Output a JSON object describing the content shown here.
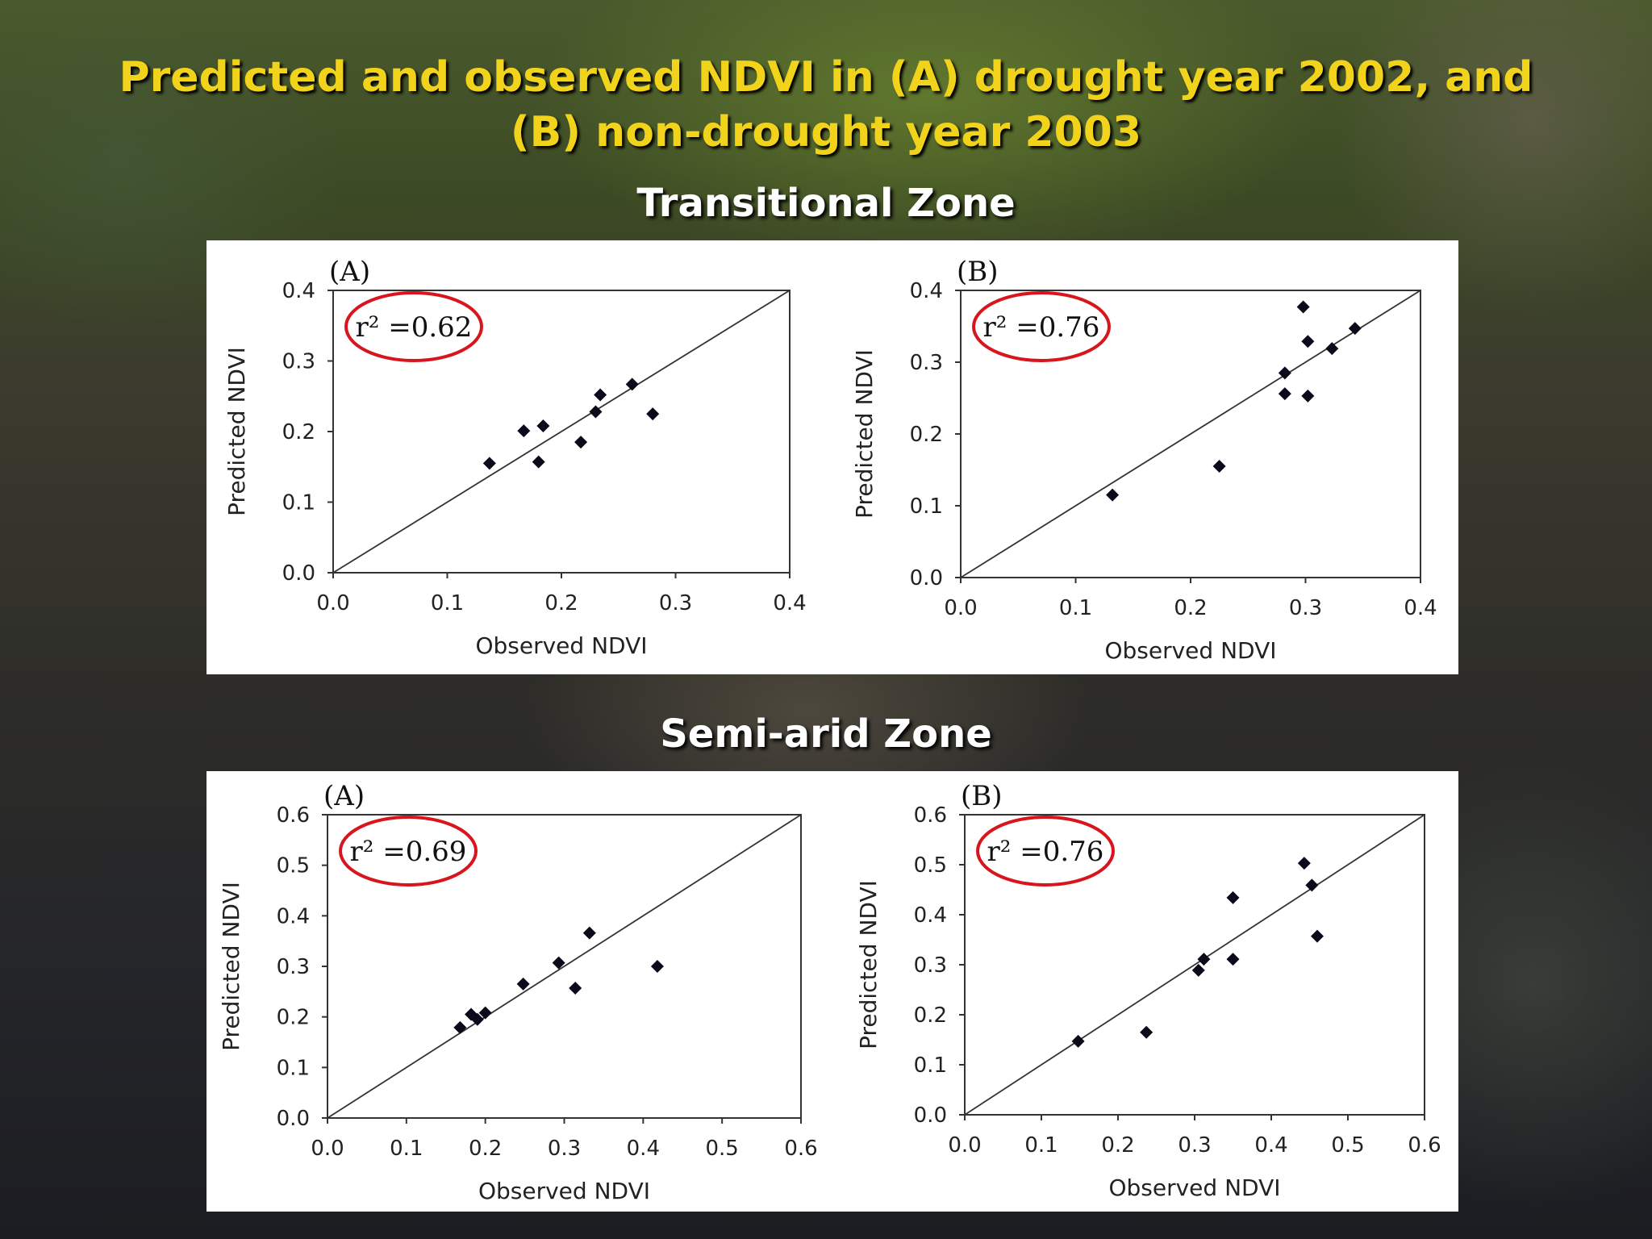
{
  "slide": {
    "title_line1": "Predicted and observed NDVI in (A) drought year 2002, and",
    "title_line2": "(B) non-drought year 2003",
    "zone_transitional": "Transitional Zone",
    "zone_semiarid": "Semi-arid Zone"
  },
  "colors": {
    "title": "#f2d31c",
    "ellipse": "#d8151c",
    "marker": "#0a0a1a"
  },
  "chart_data": [
    {
      "type": "scatter",
      "panel": "(A)",
      "zone": "Transitional Zone",
      "r2_label": "r² =0.62",
      "xlabel": "Observed NDVI",
      "ylabel": "Predicted NDVI",
      "xlim": [
        0,
        0.4
      ],
      "ylim": [
        0,
        0.4
      ],
      "xticks": [
        "0.0",
        "0.1",
        "0.2",
        "0.3",
        "0.4"
      ],
      "yticks": [
        "0.0",
        "0.1",
        "0.2",
        "0.3",
        "0.4"
      ],
      "one_to_one_line": true,
      "points": [
        {
          "x": 0.137,
          "y": 0.155
        },
        {
          "x": 0.167,
          "y": 0.201
        },
        {
          "x": 0.18,
          "y": 0.157
        },
        {
          "x": 0.184,
          "y": 0.208
        },
        {
          "x": 0.217,
          "y": 0.185
        },
        {
          "x": 0.23,
          "y": 0.228
        },
        {
          "x": 0.234,
          "y": 0.252
        },
        {
          "x": 0.262,
          "y": 0.267
        },
        {
          "x": 0.28,
          "y": 0.225
        }
      ]
    },
    {
      "type": "scatter",
      "panel": "(B)",
      "zone": "Transitional Zone",
      "r2_label": "r² =0.76",
      "xlabel": "Observed NDVI",
      "ylabel": "Predicted NDVI",
      "xlim": [
        0,
        0.4
      ],
      "ylim": [
        0,
        0.4
      ],
      "xticks": [
        "0.0",
        "0.1",
        "0.2",
        "0.3",
        "0.4"
      ],
      "yticks": [
        "0.0",
        "0.1",
        "0.2",
        "0.3",
        "0.4"
      ],
      "one_to_one_line": true,
      "points": [
        {
          "x": 0.132,
          "y": 0.115
        },
        {
          "x": 0.225,
          "y": 0.155
        },
        {
          "x": 0.282,
          "y": 0.285
        },
        {
          "x": 0.282,
          "y": 0.256
        },
        {
          "x": 0.298,
          "y": 0.377
        },
        {
          "x": 0.302,
          "y": 0.329
        },
        {
          "x": 0.302,
          "y": 0.253
        },
        {
          "x": 0.323,
          "y": 0.319
        },
        {
          "x": 0.343,
          "y": 0.347
        }
      ]
    },
    {
      "type": "scatter",
      "panel": "(A)",
      "zone": "Semi-arid Zone",
      "r2_label": "r² =0.69",
      "xlabel": "Observed NDVI",
      "ylabel": "Predicted NDVI",
      "xlim": [
        0,
        0.6
      ],
      "ylim": [
        0,
        0.6
      ],
      "xticks": [
        "0.0",
        "0.1",
        "0.2",
        "0.3",
        "0.4",
        "0.5",
        "0.6"
      ],
      "yticks": [
        "0.0",
        "0.1",
        "0.2",
        "0.3",
        "0.4",
        "0.5",
        "0.6"
      ],
      "one_to_one_line": true,
      "points": [
        {
          "x": 0.168,
          "y": 0.179
        },
        {
          "x": 0.182,
          "y": 0.205
        },
        {
          "x": 0.19,
          "y": 0.195
        },
        {
          "x": 0.2,
          "y": 0.208
        },
        {
          "x": 0.248,
          "y": 0.265
        },
        {
          "x": 0.293,
          "y": 0.307
        },
        {
          "x": 0.314,
          "y": 0.257
        },
        {
          "x": 0.332,
          "y": 0.366
        },
        {
          "x": 0.418,
          "y": 0.3
        }
      ]
    },
    {
      "type": "scatter",
      "panel": "(B)",
      "zone": "Semi-arid Zone",
      "r2_label": "r² =0.76",
      "xlabel": "Observed NDVI",
      "ylabel": "Predicted NDVI",
      "xlim": [
        0,
        0.6
      ],
      "ylim": [
        0,
        0.6
      ],
      "xticks": [
        "0.0",
        "0.1",
        "0.2",
        "0.3",
        "0.4",
        "0.5",
        "0.6"
      ],
      "yticks": [
        "0.0",
        "0.1",
        "0.2",
        "0.3",
        "0.4",
        "0.5",
        "0.6"
      ],
      "one_to_one_line": true,
      "points": [
        {
          "x": 0.148,
          "y": 0.147
        },
        {
          "x": 0.237,
          "y": 0.165
        },
        {
          "x": 0.305,
          "y": 0.289
        },
        {
          "x": 0.312,
          "y": 0.311
        },
        {
          "x": 0.35,
          "y": 0.311
        },
        {
          "x": 0.35,
          "y": 0.434
        },
        {
          "x": 0.443,
          "y": 0.503
        },
        {
          "x": 0.453,
          "y": 0.459
        },
        {
          "x": 0.46,
          "y": 0.357
        }
      ]
    }
  ]
}
